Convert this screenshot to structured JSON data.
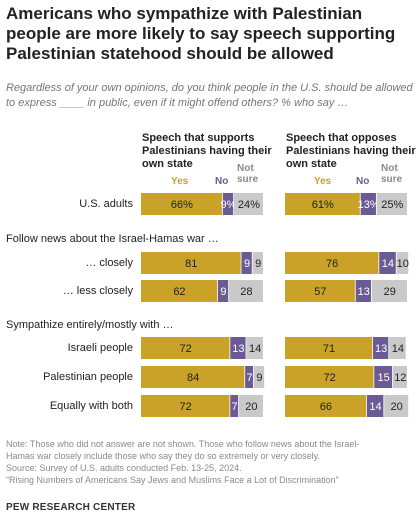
{
  "title": "Americans who sympathize with Palestinian people are more likely to say speech supporting Palestinian statehood should be allowed",
  "subtitle": "Regardless of your own opinions, do you think people in the U.S. should be allowed to express ____ in public, even if it might offend others? % who say …",
  "colors": {
    "yes": "#c9a227",
    "no": "#6b5b95",
    "not_sure": "#c9c9c9"
  },
  "chart_data": {
    "type": "bar",
    "stacked": true,
    "orientation": "horizontal",
    "panels": [
      {
        "title_line1": "Speech that supports",
        "title_line2": "Palestinians having their",
        "title_line3": "own state"
      },
      {
        "title_line1": "Speech that opposes",
        "title_line2": "Palestinians having their",
        "title_line3": "own state"
      }
    ],
    "legend": {
      "yes": "Yes",
      "no": "No",
      "not_sure_1": "Not",
      "not_sure_2": "sure"
    },
    "sections": [
      {
        "label": "",
        "rows": [
          0
        ]
      },
      {
        "label": "Follow news about the Israel-Hamas war …",
        "rows": [
          1,
          2
        ]
      },
      {
        "label": "Sympathize entirely/mostly with …",
        "rows": [
          3,
          4,
          5
        ]
      }
    ],
    "rows": [
      {
        "label": "U.S. adults",
        "left": [
          66,
          9,
          24
        ],
        "left_text": [
          "66%",
          "9%",
          "24%"
        ],
        "right": [
          61,
          13,
          25
        ],
        "right_text": [
          "61%",
          "13%",
          "25%"
        ]
      },
      {
        "label": "… closely",
        "left": [
          81,
          9,
          9
        ],
        "left_text": [
          "81",
          "9",
          "9"
        ],
        "right": [
          76,
          14,
          10
        ],
        "right_text": [
          "76",
          "14",
          "10"
        ]
      },
      {
        "label": "… less closely",
        "left": [
          62,
          9,
          28
        ],
        "left_text": [
          "62",
          "9",
          "28"
        ],
        "right": [
          57,
          13,
          29
        ],
        "right_text": [
          "57",
          "13",
          "29"
        ]
      },
      {
        "label": "Israeli people",
        "left": [
          72,
          13,
          14
        ],
        "left_text": [
          "72",
          "13",
          "14"
        ],
        "right": [
          71,
          13,
          14
        ],
        "right_text": [
          "71",
          "13",
          "14"
        ]
      },
      {
        "label": "Palestinian people",
        "left": [
          84,
          7,
          9
        ],
        "left_text": [
          "84",
          "7",
          "9"
        ],
        "right": [
          72,
          15,
          12
        ],
        "right_text": [
          "72",
          "15",
          "12"
        ]
      },
      {
        "label": "Equally with both",
        "left": [
          72,
          7,
          20
        ],
        "left_text": [
          "72",
          "7",
          "20"
        ],
        "right": [
          66,
          14,
          20
        ],
        "right_text": [
          "66",
          "14",
          "20"
        ]
      }
    ]
  },
  "notes": {
    "line1": "Note: Those who did not answer are not shown. Those who follow news about the Israel-",
    "line2": "Hamas war closely include those who say they do so extremely or very closely.",
    "line3": "Source: Survey of U.S. adults conducted Feb. 13-25, 2024.",
    "line4": "“Rising Numbers of Americans Say Jews and Muslims Face a Lot of Discrimination”"
  },
  "brand": "PEW RESEARCH CENTER"
}
